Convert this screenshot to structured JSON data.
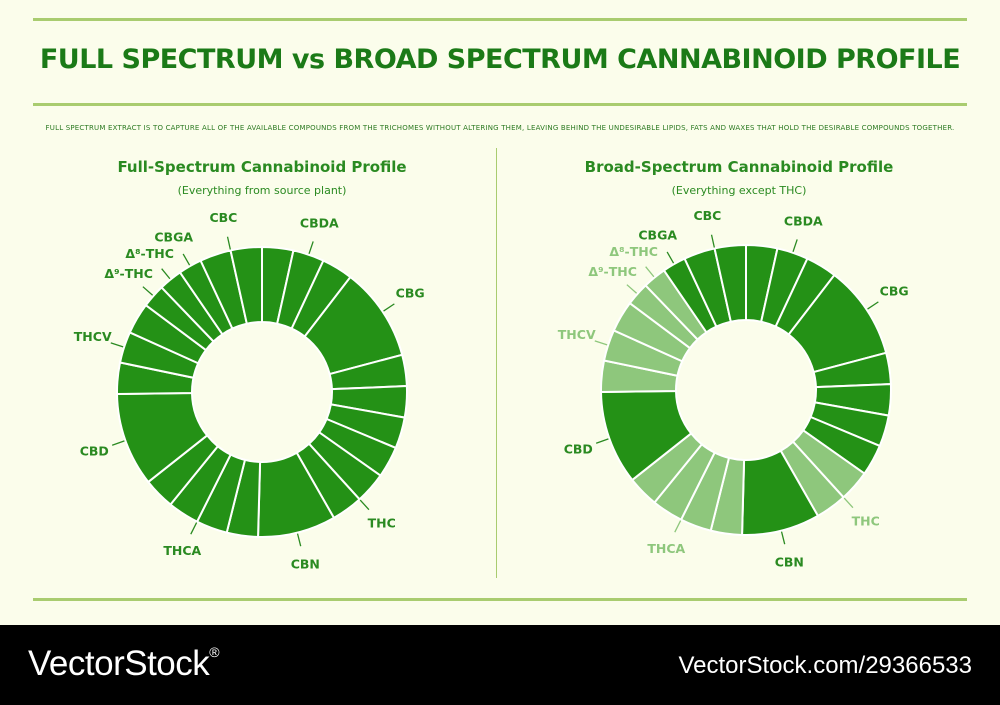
{
  "header": {
    "title": "FULL SPECTRUM vs BROAD SPECTRUM CANNABINOID PROFILE",
    "subtitle": "Full spectrum extract is to capture all of the available compounds from the trichomes without altering them, leaving behind the undesirable lipids, fats and waxes that hold the desirable compounds together."
  },
  "colors": {
    "primary": "#249116",
    "faded": "#8ec77c",
    "stroke": "#ffffff",
    "label_dark": "#2a8a21",
    "label_faded": "#8ec77c",
    "background": "#fbfdeb",
    "accent_rule": "#a9cc6f"
  },
  "chart_data": [
    {
      "type": "donut",
      "title": "Full-Spectrum Cannabinoid Profile",
      "subtitle": "(Everything from source plant)",
      "segments": [
        {
          "label": "CBDA",
          "values": [
            4,
            4,
            4
          ]
        },
        {
          "label": "CBG",
          "values": [
            12
          ]
        },
        {
          "label": "",
          "values": [
            4,
            4,
            4,
            4
          ]
        },
        {
          "label": "THC",
          "values": [
            4,
            4
          ]
        },
        {
          "label": "CBN",
          "values": [
            10
          ]
        },
        {
          "label": "THCA",
          "values": [
            4,
            4,
            4,
            4
          ]
        },
        {
          "label": "CBD",
          "values": [
            12
          ]
        },
        {
          "label": "THCV",
          "values": [
            4,
            4,
            4
          ]
        },
        {
          "label": "Δ⁹-THC",
          "values": [
            3
          ]
        },
        {
          "label": "Δ⁸-THC",
          "values": [
            3
          ]
        },
        {
          "label": "CBGA",
          "values": [
            3
          ]
        },
        {
          "label": "CBC",
          "values": [
            4,
            4
          ]
        }
      ],
      "faded_labels": []
    },
    {
      "type": "donut",
      "title": "Broad-Spectrum Cannabinoid Profile",
      "subtitle": "(Everything except THC)",
      "segments": [
        {
          "label": "CBDA",
          "values": [
            4,
            4,
            4
          ]
        },
        {
          "label": "CBG",
          "values": [
            12
          ]
        },
        {
          "label": "",
          "values": [
            4,
            4,
            4,
            4
          ]
        },
        {
          "label": "THC",
          "values": [
            4,
            4
          ]
        },
        {
          "label": "CBN",
          "values": [
            10
          ]
        },
        {
          "label": "THCA",
          "values": [
            4,
            4,
            4,
            4
          ]
        },
        {
          "label": "CBD",
          "values": [
            12
          ]
        },
        {
          "label": "THCV",
          "values": [
            4,
            4,
            4
          ]
        },
        {
          "label": "Δ⁹-THC",
          "values": [
            3
          ]
        },
        {
          "label": "Δ⁸-THC",
          "values": [
            3
          ]
        },
        {
          "label": "CBGA",
          "values": [
            3
          ]
        },
        {
          "label": "CBC",
          "values": [
            4,
            4
          ]
        }
      ],
      "faded_labels": [
        "THC",
        "THCA",
        "THCV",
        "Δ⁹-THC",
        "Δ⁸-THC"
      ]
    }
  ],
  "footer": {
    "brand": "VectorStock",
    "trademark": "®",
    "url": "VectorStock.com/29366533"
  }
}
